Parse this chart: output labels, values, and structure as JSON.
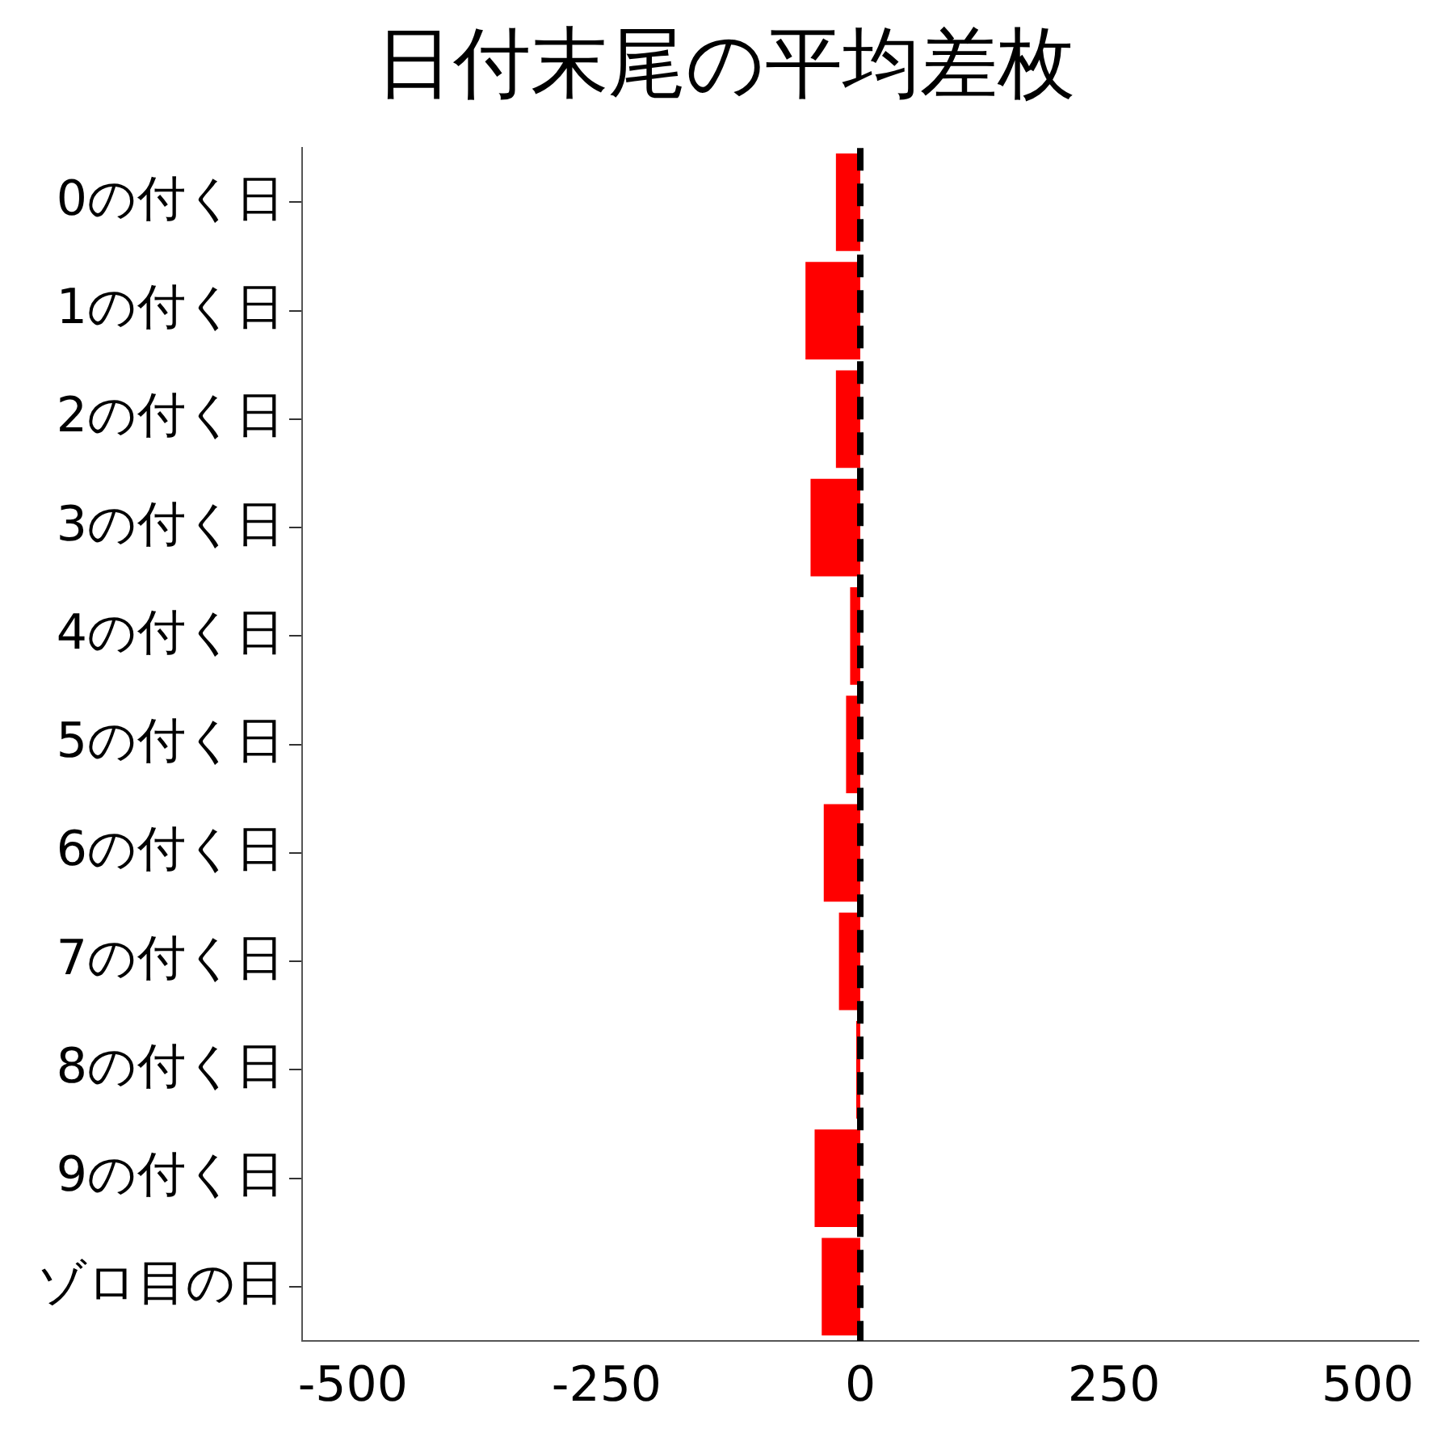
{
  "chart_data": {
    "type": "bar",
    "orientation": "horizontal",
    "title": "日付末尾の平均差枚",
    "categories": [
      "0の付く日",
      "1の付く日",
      "2の付く日",
      "3の付く日",
      "4の付く日",
      "5の付く日",
      "6の付く日",
      "7の付く日",
      "8の付く日",
      "9の付く日",
      "ゾロ目の日"
    ],
    "values": [
      -24,
      -54,
      -24,
      -49,
      -10,
      -14,
      -36,
      -21,
      -4,
      -45,
      -38
    ],
    "color": "#ff0000",
    "xlim": [
      -550,
      550
    ],
    "xticks": [
      -500,
      -250,
      0,
      250,
      500
    ],
    "grid": false,
    "legend": false,
    "ref_lines": [
      {
        "axis": "x",
        "value": 0,
        "color": "#000000",
        "line_style": "dashed"
      }
    ]
  }
}
